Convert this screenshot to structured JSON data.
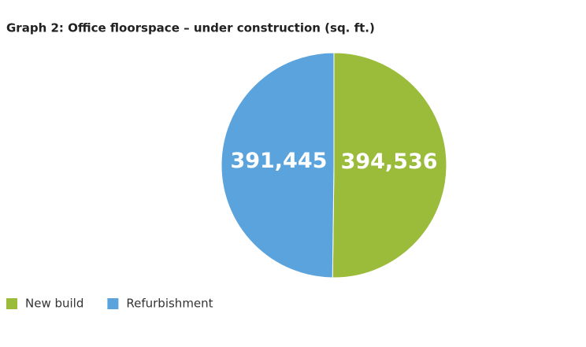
{
  "chart_data": {
    "type": "pie",
    "title": "Graph 2: Office floorspace – under construction (sq. ft.)",
    "categories": [
      "New build",
      "Refurbishment"
    ],
    "values": [
      394536,
      391445
    ],
    "value_labels": [
      "394,536",
      "391,445"
    ],
    "colors": [
      "#9bbb3b",
      "#5ba3dc"
    ],
    "legend": "bottom-left"
  }
}
